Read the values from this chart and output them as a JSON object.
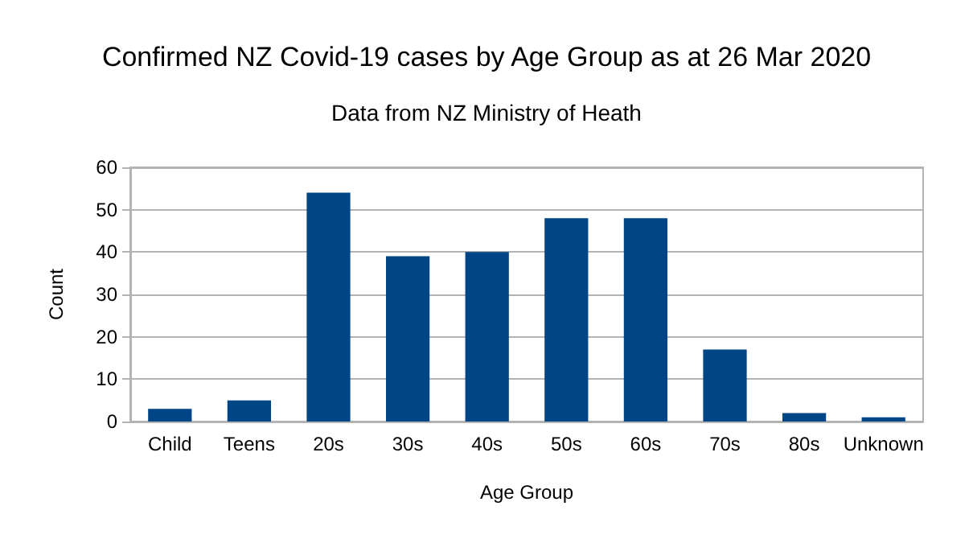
{
  "chart_data": {
    "type": "bar",
    "title": "Confirmed NZ Covid-19 cases by Age Group as at 26 Mar 2020",
    "subtitle": "Data from NZ Ministry of Heath",
    "xlabel": "Age Group",
    "ylabel": "Count",
    "categories": [
      "Child",
      "Teens",
      "20s",
      "30s",
      "40s",
      "50s",
      "60s",
      "70s",
      "80s",
      "Unknown"
    ],
    "values": [
      3,
      5,
      54,
      39,
      40,
      48,
      48,
      17,
      2,
      1
    ],
    "color": "#004586",
    "ylim": [
      0,
      60
    ],
    "yticks": [
      0,
      10,
      20,
      30,
      40,
      50,
      60
    ],
    "grid": "y"
  }
}
